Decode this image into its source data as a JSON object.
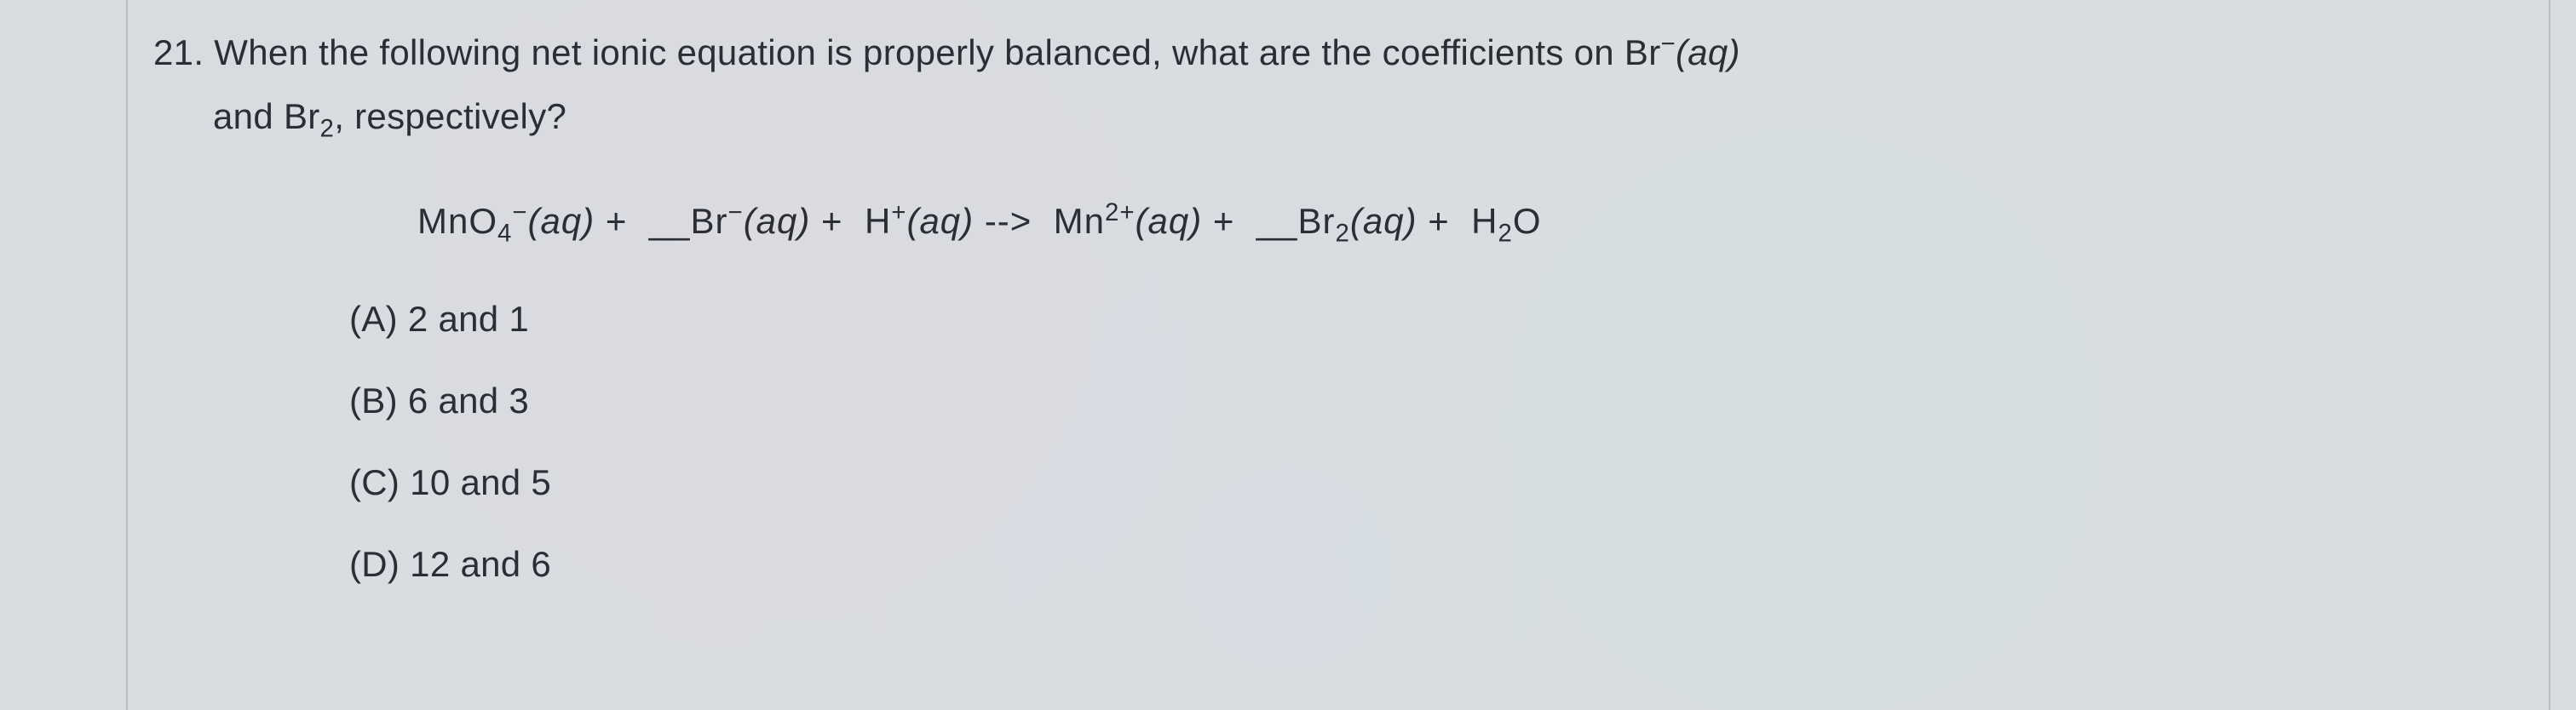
{
  "question": {
    "number": "21.",
    "line1_part1": "When the following net ionic equation is properly balanced, what are the coefficients on Br",
    "line1_species_charge": "−",
    "line1_state": "(aq)",
    "line2_part1": "and Br",
    "line2_sub": "2",
    "line2_part2": ", respectively?"
  },
  "equation": {
    "s1": "MnO",
    "s1_sub": "4",
    "s1_sup": "−",
    "s1_state": "(aq)",
    "plus": " + ",
    "blank": "__",
    "s2": "Br",
    "s2_sup": "−",
    "s2_state": "(aq)",
    "s3": "H",
    "s3_sup": "+",
    "s3_state": "(aq)",
    "arrow": " --> ",
    "s4": "Mn",
    "s4_sup": "2+",
    "s4_state": "(aq)",
    "s5": "Br",
    "s5_sub": "2",
    "s5_state": "(aq)",
    "s6": "H",
    "s6_sub": "2",
    "s6_part2": "O"
  },
  "options": {
    "a": "(A) 2 and 1",
    "b": "(B) 6 and 3",
    "c": "(C) 10 and 5",
    "d": "(D) 12 and 6"
  },
  "styling": {
    "background_color": "#d8dce0",
    "text_color": "#2a2e35",
    "border_color": "#b8bcc2",
    "font_size_pt": 42,
    "font_family": "Segoe UI"
  }
}
